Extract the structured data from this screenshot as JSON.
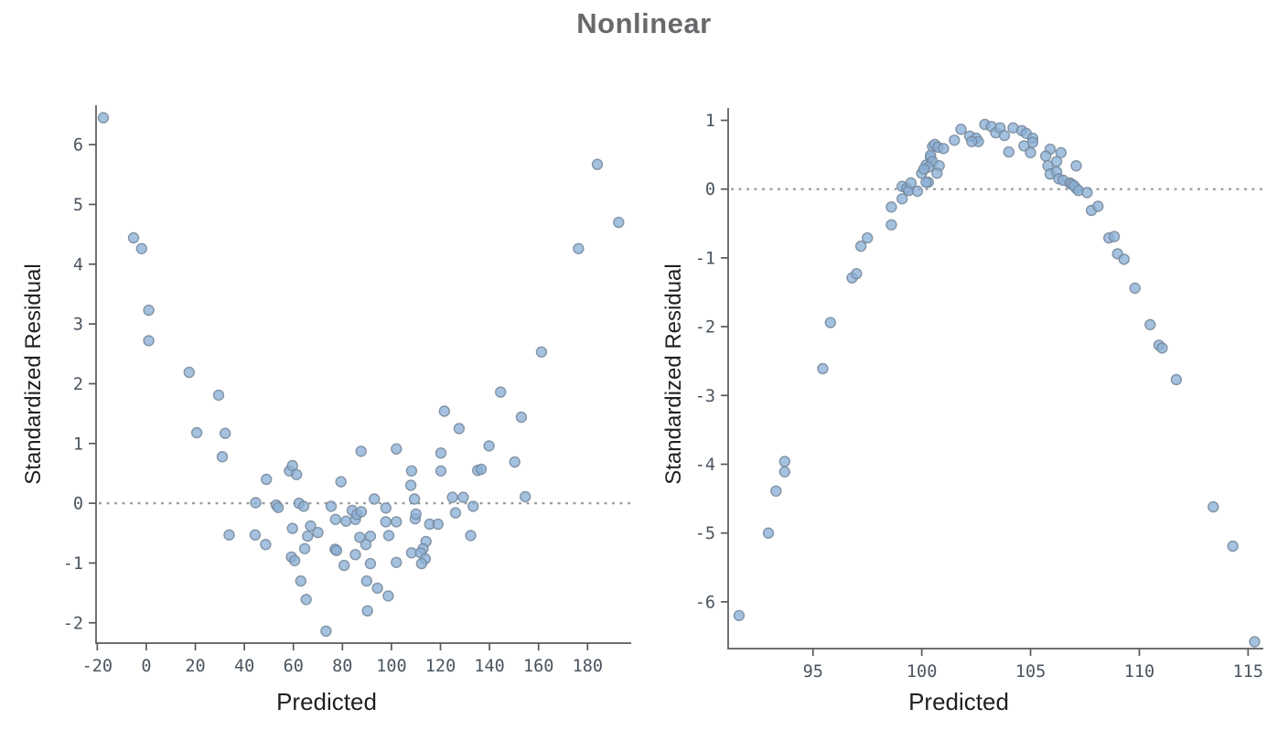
{
  "title": "Nonlinear",
  "style": {
    "marker_fill": "#8ab0d6",
    "marker_stroke": "#76879a",
    "marker_radius": 5.5,
    "marker_opacity": 0.78,
    "axis_color": "#58595b",
    "tick_label_color": "#4a545e",
    "axis_label_color": "#1f2023",
    "title_color": "#68696c",
    "ref_line_color": "#9a9da0"
  },
  "chart_data": [
    {
      "id": "left-plot",
      "type": "scatter",
      "xlabel": "Predicted",
      "ylabel": "Standardized Residual",
      "xlim": [
        -20.5,
        197.8
      ],
      "ylim": [
        -2.34,
        6.66
      ],
      "xticks": [
        -20,
        0,
        20,
        40,
        60,
        80,
        100,
        120,
        140,
        160,
        180
      ],
      "yticks": [
        -2,
        -1,
        0,
        1,
        2,
        3,
        4,
        5,
        6
      ],
      "reference_line_y": 0,
      "grid": false,
      "legend": false,
      "points": [
        [
          -17.5,
          6.45
        ],
        [
          -5.2,
          4.44
        ],
        [
          -1.9,
          4.26
        ],
        [
          1,
          3.23
        ],
        [
          1,
          2.72
        ],
        [
          17.5,
          2.19
        ],
        [
          29.5,
          1.81
        ],
        [
          20.6,
          1.18
        ],
        [
          32.2,
          1.17
        ],
        [
          31,
          0.78
        ],
        [
          33.8,
          -0.53
        ],
        [
          44.4,
          -0.53
        ],
        [
          48.7,
          -0.69
        ],
        [
          44.6,
          0.01
        ],
        [
          53,
          -0.03
        ],
        [
          53.8,
          -0.07
        ],
        [
          59.6,
          -0.42
        ],
        [
          62.3,
          0
        ],
        [
          64.2,
          -0.05
        ],
        [
          67,
          -0.38
        ],
        [
          70,
          -0.49
        ],
        [
          65.8,
          -0.55
        ],
        [
          59.2,
          -0.9
        ],
        [
          60.5,
          -0.96
        ],
        [
          64.6,
          -0.76
        ],
        [
          63,
          -1.3
        ],
        [
          65.2,
          -1.61
        ],
        [
          73.3,
          -2.14
        ],
        [
          75.4,
          -0.05
        ],
        [
          77.2,
          -0.27
        ],
        [
          81.5,
          -0.3
        ],
        [
          85.3,
          -0.27
        ],
        [
          77,
          -0.77
        ],
        [
          77.6,
          -0.79
        ],
        [
          85.3,
          -0.86
        ],
        [
          80.7,
          -1.04
        ],
        [
          84,
          -0.12
        ],
        [
          85.9,
          -0.19
        ],
        [
          49,
          0.4
        ],
        [
          58.4,
          0.54
        ],
        [
          59.6,
          0.63
        ],
        [
          61.3,
          0.48
        ],
        [
          79.4,
          0.36
        ],
        [
          87.6,
          0.87
        ],
        [
          102,
          0.91
        ],
        [
          108.2,
          0.54
        ],
        [
          107.9,
          0.3
        ],
        [
          120.2,
          0.84
        ],
        [
          120.2,
          0.54
        ],
        [
          121.6,
          1.54
        ],
        [
          127.6,
          1.25
        ],
        [
          135.2,
          0.55
        ],
        [
          136.6,
          0.57
        ],
        [
          139.8,
          0.96
        ],
        [
          144.5,
          1.86
        ],
        [
          150.3,
          0.69
        ],
        [
          153,
          1.44
        ],
        [
          93,
          0.07
        ],
        [
          109.4,
          0.07
        ],
        [
          124.9,
          0.1
        ],
        [
          129.3,
          0.1
        ],
        [
          154.6,
          0.11
        ],
        [
          133.3,
          -0.05
        ],
        [
          97.7,
          -0.08
        ],
        [
          87.7,
          -0.14
        ],
        [
          126.1,
          -0.16
        ],
        [
          97.7,
          -0.31
        ],
        [
          102,
          -0.31
        ],
        [
          109.7,
          -0.26
        ],
        [
          115.6,
          -0.35
        ],
        [
          119,
          -0.35
        ],
        [
          87.1,
          -0.57
        ],
        [
          91.4,
          -0.55
        ],
        [
          98.9,
          -0.54
        ],
        [
          132.3,
          -0.54
        ],
        [
          89.6,
          -0.69
        ],
        [
          108.2,
          -0.83
        ],
        [
          114.1,
          -0.64
        ],
        [
          112.9,
          -0.76
        ],
        [
          111.9,
          -0.83
        ],
        [
          113.8,
          -0.93
        ],
        [
          112.3,
          -1.01
        ],
        [
          102,
          -0.99
        ],
        [
          91.4,
          -1.01
        ],
        [
          89.9,
          -1.3
        ],
        [
          94.3,
          -1.42
        ],
        [
          98.7,
          -1.55
        ],
        [
          90.2,
          -1.8
        ],
        [
          110,
          -0.18
        ],
        [
          161.2,
          2.53
        ],
        [
          176.3,
          4.26
        ],
        [
          184,
          5.67
        ],
        [
          192.7,
          4.7
        ]
      ]
    },
    {
      "id": "right-plot",
      "type": "scatter",
      "xlabel": "Predicted",
      "ylabel": "Standardized Residual",
      "xlim": [
        91.1,
        115.7
      ],
      "ylim": [
        -6.68,
        1.18
      ],
      "xticks": [
        95,
        100,
        105,
        110,
        115
      ],
      "yticks": [
        -6,
        -5,
        -4,
        -3,
        -2,
        -1,
        0,
        1
      ],
      "reference_line_y": 0,
      "grid": false,
      "legend": false,
      "points": [
        [
          91.6,
          -6.2
        ],
        [
          92.95,
          -5
        ],
        [
          93.3,
          -4.39
        ],
        [
          93.7,
          -3.96
        ],
        [
          93.7,
          -4.11
        ],
        [
          95.45,
          -2.61
        ],
        [
          95.8,
          -1.94
        ],
        [
          96.8,
          -1.29
        ],
        [
          97,
          -1.23
        ],
        [
          97.2,
          -0.83
        ],
        [
          97.5,
          -0.71
        ],
        [
          98.6,
          -0.52
        ],
        [
          98.6,
          -0.26
        ],
        [
          99.1,
          -0.14
        ],
        [
          99.1,
          0.04
        ],
        [
          99.3,
          0.01
        ],
        [
          99.4,
          -0.02
        ],
        [
          99.5,
          0.09
        ],
        [
          99.8,
          -0.03
        ],
        [
          100,
          0.23
        ],
        [
          100.2,
          0.35
        ],
        [
          100.3,
          0.1
        ],
        [
          100.4,
          0.46
        ],
        [
          100.5,
          0.62
        ],
        [
          100.4,
          0.49
        ],
        [
          100.5,
          0.4
        ],
        [
          100.8,
          0.34
        ],
        [
          100.3,
          0.32
        ],
        [
          100.1,
          0.29
        ],
        [
          100.7,
          0.23
        ],
        [
          100.2,
          0.1
        ],
        [
          100.6,
          0.65
        ],
        [
          100.75,
          0.61
        ],
        [
          101,
          0.59
        ],
        [
          101.5,
          0.71
        ],
        [
          101.8,
          0.87
        ],
        [
          102.2,
          0.77
        ],
        [
          102.5,
          0.74
        ],
        [
          102.6,
          0.69
        ],
        [
          102.3,
          0.69
        ],
        [
          102.9,
          0.94
        ],
        [
          103.2,
          0.91
        ],
        [
          103.4,
          0.82
        ],
        [
          103.6,
          0.89
        ],
        [
          103.8,
          0.78
        ],
        [
          104.2,
          0.89
        ],
        [
          104.6,
          0.85
        ],
        [
          104.8,
          0.81
        ],
        [
          105.1,
          0.74
        ],
        [
          105.1,
          0.68
        ],
        [
          104.7,
          0.63
        ],
        [
          104,
          0.54
        ],
        [
          105,
          0.53
        ],
        [
          105.9,
          0.58
        ],
        [
          105.7,
          0.48
        ],
        [
          106.4,
          0.53
        ],
        [
          105.8,
          0.34
        ],
        [
          106.2,
          0.4
        ],
        [
          105.9,
          0.22
        ],
        [
          106.2,
          0.25
        ],
        [
          106.3,
          0.15
        ],
        [
          106.5,
          0.13
        ],
        [
          107.1,
          0.34
        ],
        [
          106.8,
          0.09
        ],
        [
          106.9,
          0.07
        ],
        [
          107.1,
          0.01
        ],
        [
          107,
          0.05
        ],
        [
          107.2,
          -0.02
        ],
        [
          107.6,
          -0.05
        ],
        [
          107.8,
          -0.31
        ],
        [
          108.1,
          -0.25
        ],
        [
          108.6,
          -0.71
        ],
        [
          108.85,
          -0.69
        ],
        [
          109,
          -0.94
        ],
        [
          109.3,
          -1.02
        ],
        [
          109.8,
          -1.44
        ],
        [
          110.5,
          -1.97
        ],
        [
          110.9,
          -2.27
        ],
        [
          111.05,
          -2.31
        ],
        [
          111.7,
          -2.77
        ],
        [
          113.4,
          -4.62
        ],
        [
          114.3,
          -5.19
        ],
        [
          115.3,
          -6.58
        ]
      ]
    }
  ]
}
